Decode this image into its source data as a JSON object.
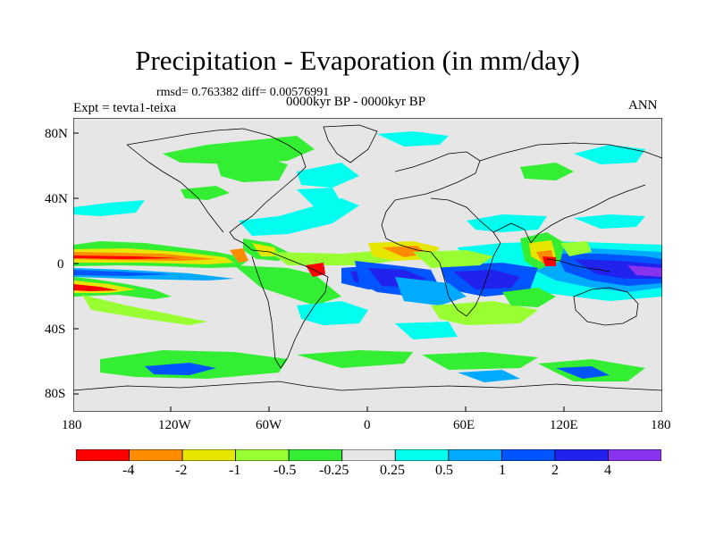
{
  "header": {
    "title": "Precipitation - Evaporation (in mm/day)",
    "stats": "rmsd= 0.763382 diff= 0.00576991",
    "expt": "Expt = tevta1-teixa",
    "period": "0000kyr BP - 0000kyr BP",
    "season": "ANN"
  },
  "axes": {
    "lat_ticks": [
      "80N",
      "40N",
      "0",
      "40S",
      "80S"
    ],
    "lon_ticks": [
      "180",
      "120W",
      "60W",
      "0",
      "60E",
      "120E",
      "180"
    ]
  },
  "colorbar": {
    "labels": [
      "-4",
      "-2",
      "-1",
      "-0.5",
      "-0.25",
      "0.25",
      "0.5",
      "1",
      "2",
      "4"
    ],
    "colors": [
      "#ff0000",
      "#ff8c00",
      "#e6e600",
      "#99ff33",
      "#33ee33",
      "#e6e6e6",
      "#00ffee",
      "#00aaff",
      "#0055ff",
      "#2222ee",
      "#8833ee"
    ]
  },
  "map": {
    "background": "#e6e6e6",
    "coast_color": "#000000"
  }
}
